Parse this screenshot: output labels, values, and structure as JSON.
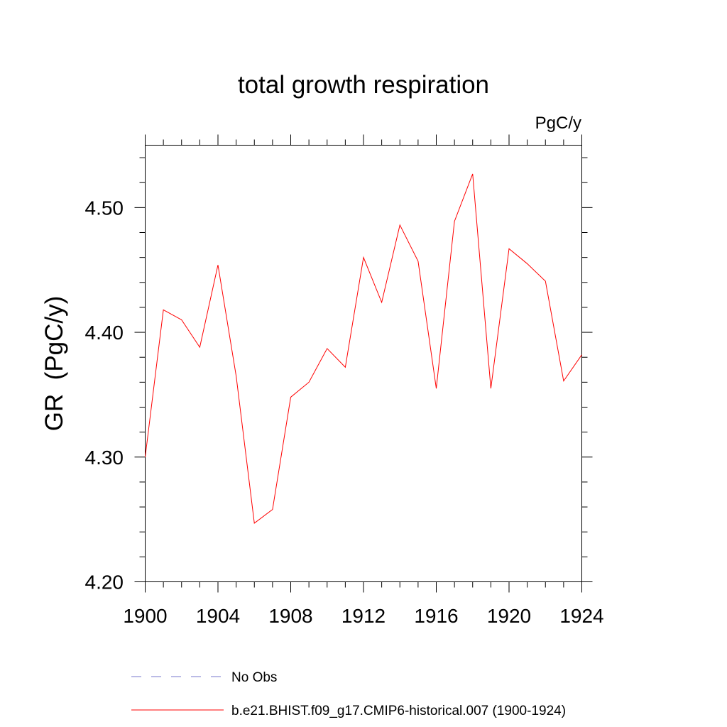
{
  "chart_data": {
    "type": "line",
    "title": "total growth respiration",
    "units": "PgC/y",
    "ylabel": "GR  (PgC/y)",
    "xlabel": "",
    "xlim": [
      1900,
      1924
    ],
    "ylim": [
      4.2,
      4.55
    ],
    "xticks": [
      1900,
      1904,
      1908,
      1912,
      1916,
      1920,
      1924
    ],
    "xtick_labels": [
      "1900",
      "1904",
      "1908",
      "1912",
      "1916",
      "1920",
      "1924"
    ],
    "yticks": [
      4.2,
      4.3,
      4.4,
      4.5
    ],
    "ytick_labels": [
      "4.20",
      "4.30",
      "4.40",
      "4.50"
    ],
    "grid": false,
    "legend_position": "bottom",
    "legend": [
      {
        "label": "No Obs",
        "color": "#7777cc",
        "style": "dashed"
      },
      {
        "label": "b.e21.BHIST.f09_g17.CMIP6-historical.007 (1900-1924)",
        "color": "#ff0000",
        "style": "solid"
      }
    ],
    "series": [
      {
        "name": "b.e21.BHIST.f09_g17.CMIP6-historical.007 (1900-1924)",
        "color": "#ff0000",
        "x": [
          1900,
          1901,
          1902,
          1903,
          1904,
          1905,
          1906,
          1907,
          1908,
          1909,
          1910,
          1911,
          1912,
          1913,
          1914,
          1915,
          1916,
          1917,
          1918,
          1919,
          1920,
          1921,
          1922,
          1923,
          1924
        ],
        "y": [
          4.3,
          4.418,
          4.41,
          4.388,
          4.454,
          4.365,
          4.247,
          4.258,
          4.348,
          4.36,
          4.387,
          4.372,
          4.46,
          4.424,
          4.486,
          4.457,
          4.355,
          4.489,
          4.527,
          4.355,
          4.467,
          4.455,
          4.441,
          4.361,
          4.382
        ]
      }
    ]
  }
}
